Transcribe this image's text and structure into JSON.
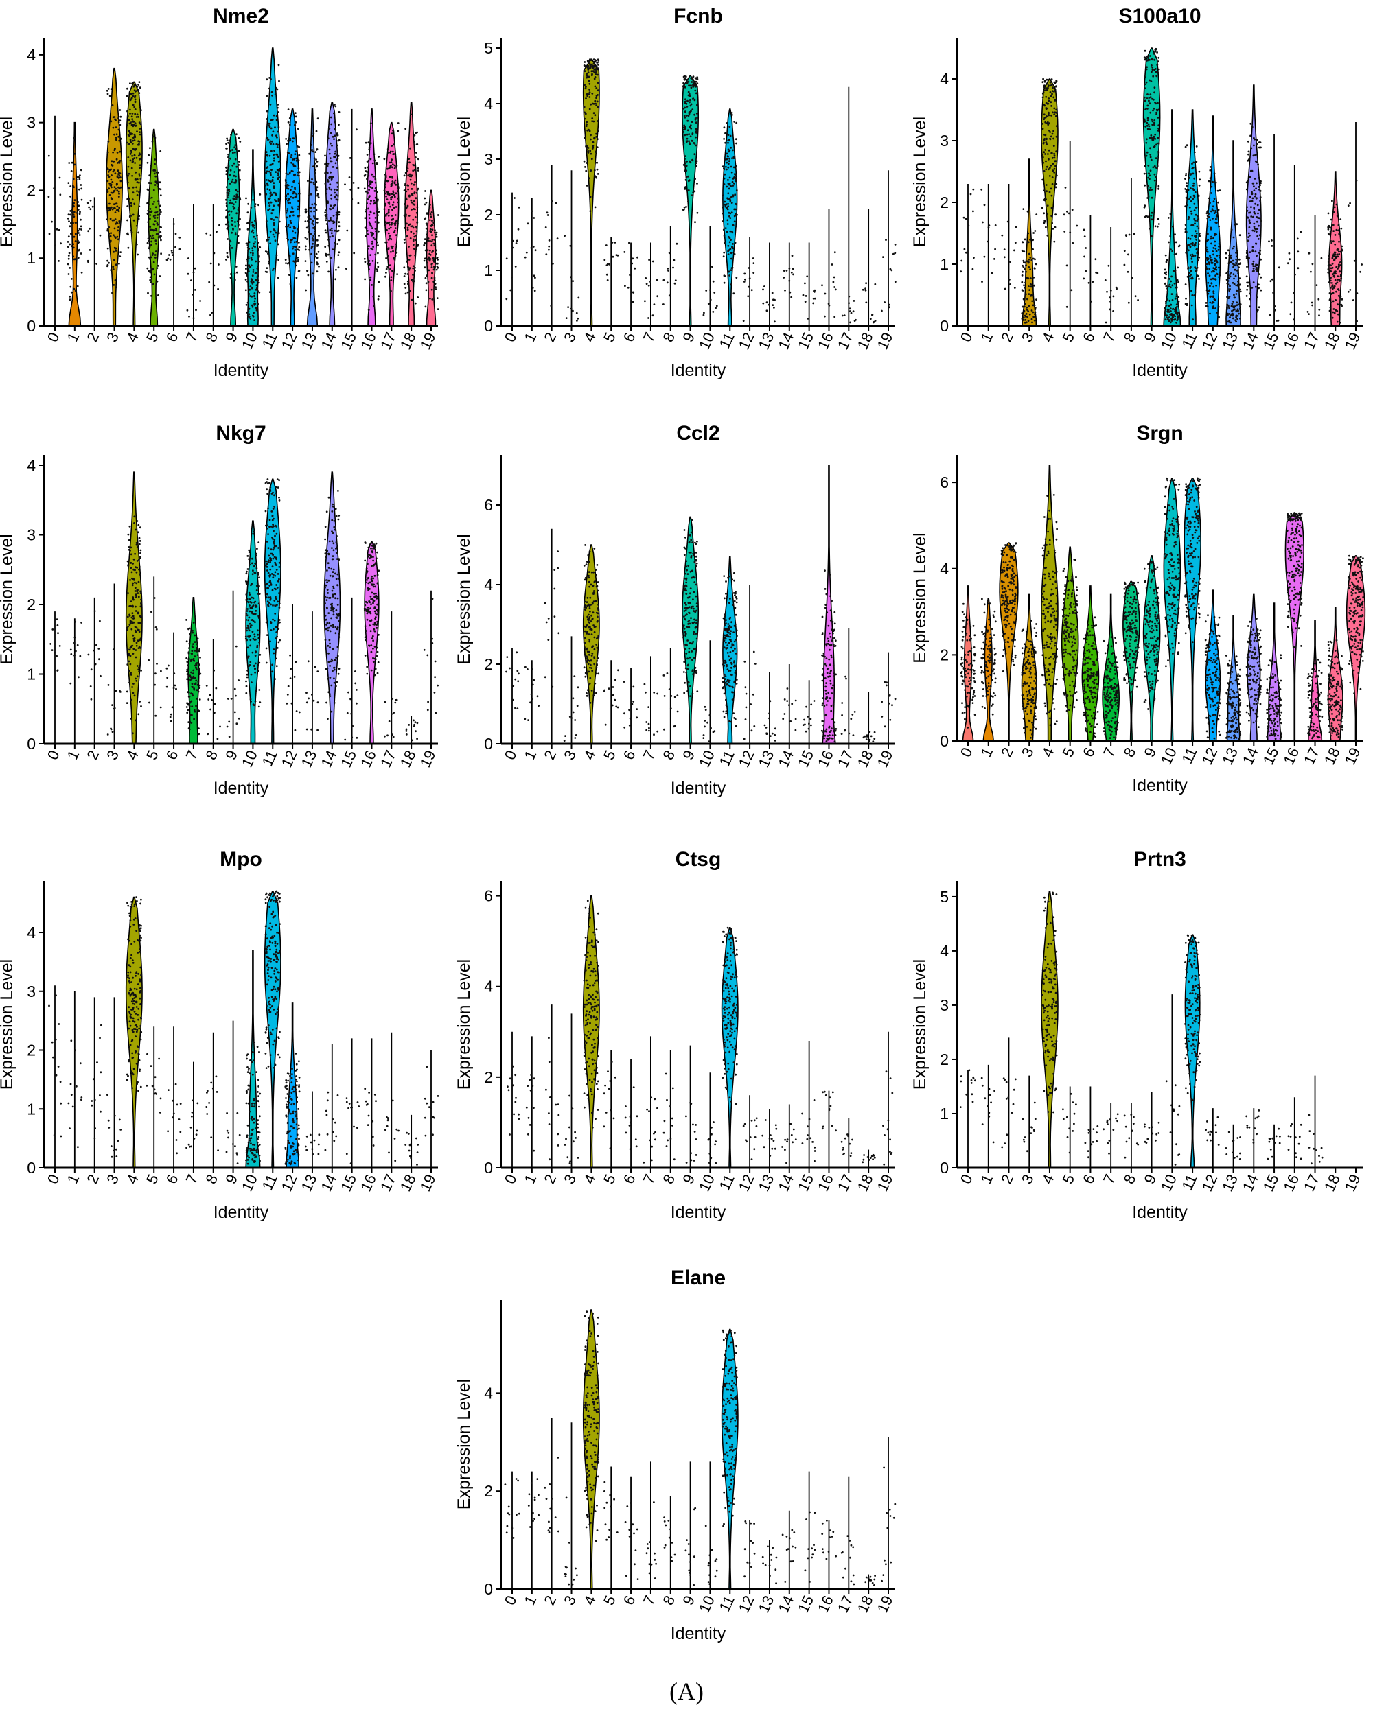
{
  "figure_label": "(A)",
  "cluster_colors": [
    "#F8766D",
    "#E58700",
    "#C99800",
    "#A3A500",
    "#6BB100",
    "#00BA38",
    "#00BF7D",
    "#00C0AF",
    "#00BCD8",
    "#00B0F6",
    "#619CFF",
    "#B983FF",
    "#E76BF3",
    "#FD61D1",
    "#FF67A4",
    "#F8766D",
    "#E58700",
    "#C99800",
    "#A3A500",
    "#6BB100"
  ],
  "cluster_color_map": {
    "0": "#F8766D",
    "1": "#E58700",
    "2": "#D89000",
    "3": "#C99800",
    "4": "#A3A500",
    "5": "#6BB100",
    "6": "#39B600",
    "7": "#00BA38",
    "8": "#00BF7D",
    "9": "#00C1A3",
    "10": "#00BFC4",
    "11": "#00B9E3",
    "12": "#00A9FF",
    "13": "#619CFF",
    "14": "#9590FF",
    "15": "#C77CFF",
    "16": "#E76BF3",
    "17": "#FF62BC",
    "18": "#FF6C91",
    "19": "#FF6C91"
  },
  "chart_data": [
    {
      "type": "violin",
      "title": "Nme2",
      "xlabel": "Identity",
      "ylabel": "Expression Level",
      "categories": [
        "0",
        "1",
        "2",
        "3",
        "4",
        "5",
        "6",
        "7",
        "8",
        "9",
        "10",
        "11",
        "12",
        "13",
        "14",
        "15",
        "16",
        "17",
        "18",
        "19"
      ],
      "yticks": [
        0,
        1,
        2,
        3,
        4
      ],
      "ylim": [
        0,
        4.1
      ],
      "max": [
        3.1,
        3.0,
        1.9,
        3.8,
        3.6,
        2.9,
        1.6,
        1.8,
        1.8,
        2.9,
        2.6,
        4.1,
        3.2,
        3.2,
        3.3,
        3.2,
        3.2,
        3.0,
        3.3,
        2.0
      ],
      "median": [
        1.6,
        1.5,
        1.4,
        2.1,
        2.6,
        1.6,
        1.1,
        0.7,
        0.9,
        1.9,
        0.9,
        2.2,
        1.9,
        1.7,
        2.1,
        1.7,
        1.6,
        1.8,
        1.7,
        1.1
      ],
      "fill": [
        0,
        0.3,
        0,
        0.9,
        0.9,
        0.6,
        0,
        0,
        0,
        0.7,
        0.6,
        0.9,
        0.8,
        0.4,
        0.7,
        0,
        0.6,
        0.8,
        0.7,
        0.5
      ]
    },
    {
      "type": "violin",
      "title": "Fcnb",
      "xlabel": "Identity",
      "ylabel": "Expression Level",
      "categories": [
        "0",
        "1",
        "2",
        "3",
        "4",
        "5",
        "6",
        "7",
        "8",
        "9",
        "10",
        "11",
        "12",
        "13",
        "14",
        "15",
        "16",
        "17",
        "18",
        "19"
      ],
      "yticks": [
        0,
        1,
        2,
        3,
        4,
        5
      ],
      "ylim": [
        0,
        5
      ],
      "max": [
        2.4,
        2.3,
        2.9,
        2.8,
        4.8,
        1.6,
        1.5,
        1.5,
        1.8,
        4.5,
        1.8,
        3.9,
        1.6,
        1.5,
        1.5,
        1.5,
        2.1,
        4.3,
        2.1,
        2.8
      ],
      "median": [
        1.5,
        1.3,
        1.4,
        0.6,
        4.2,
        1.3,
        0.9,
        0.7,
        1.0,
        3.8,
        0.4,
        2.3,
        0.8,
        0.5,
        0.7,
        0.6,
        0.7,
        0.5,
        0.2,
        1.0
      ],
      "fill": [
        0,
        0,
        0,
        0,
        0.9,
        0,
        0,
        0,
        0,
        0.9,
        0,
        0.8,
        0,
        0,
        0,
        0,
        0,
        0,
        0,
        0
      ]
    },
    {
      "type": "violin",
      "title": "S100a10",
      "xlabel": "Identity",
      "ylabel": "Expression Level",
      "categories": [
        "0",
        "1",
        "2",
        "3",
        "4",
        "5",
        "6",
        "7",
        "8",
        "9",
        "10",
        "11",
        "12",
        "13",
        "14",
        "15",
        "16",
        "17",
        "18",
        "19"
      ],
      "yticks": [
        0,
        1,
        2,
        3,
        4
      ],
      "ylim": [
        0,
        4.5
      ],
      "max": [
        2.3,
        2.3,
        2.3,
        2.7,
        4.0,
        3.0,
        1.8,
        1.6,
        2.4,
        4.5,
        3.5,
        3.5,
        3.4,
        3.0,
        3.9,
        3.1,
        2.6,
        1.8,
        2.5,
        3.3
      ],
      "median": [
        1.5,
        1.4,
        1.3,
        0.7,
        3.1,
        1.4,
        0.9,
        0.7,
        1.0,
        3.4,
        0.3,
        1.6,
        1.1,
        0.6,
        1.7,
        0.6,
        1.0,
        0.5,
        1.0,
        1.0
      ],
      "fill": [
        0,
        0,
        0,
        0.4,
        0.9,
        0,
        0,
        0,
        0,
        0.9,
        0.5,
        0.7,
        0.8,
        0.6,
        0.8,
        0,
        0,
        0,
        0.7,
        0
      ]
    },
    {
      "type": "violin",
      "title": "Nkg7",
      "xlabel": "Identity",
      "ylabel": "Expression Level",
      "categories": [
        "0",
        "1",
        "2",
        "3",
        "4",
        "5",
        "6",
        "7",
        "8",
        "9",
        "10",
        "11",
        "12",
        "13",
        "14",
        "15",
        "16",
        "17",
        "18",
        "19"
      ],
      "yticks": [
        0,
        1,
        2,
        3,
        4
      ],
      "ylim": [
        0,
        4
      ],
      "max": [
        1.9,
        1.8,
        2.1,
        2.3,
        3.9,
        2.4,
        1.6,
        2.1,
        1.5,
        2.2,
        3.2,
        3.8,
        2.0,
        1.9,
        3.9,
        2.1,
        2.9,
        1.9,
        0.4,
        2.2
      ],
      "median": [
        1.5,
        1.4,
        1.4,
        0.6,
        1.8,
        1.2,
        0.8,
        1.0,
        0.7,
        0.6,
        1.7,
        2.5,
        0.8,
        0.5,
        2.0,
        0.6,
        2.0,
        0.4,
        0.2,
        1.2
      ],
      "fill": [
        0,
        0,
        0,
        0,
        0.9,
        0,
        0,
        0.6,
        0,
        0,
        0.8,
        0.9,
        0,
        0,
        0.9,
        0,
        0.8,
        0,
        0,
        0
      ]
    },
    {
      "type": "violin",
      "title": "Ccl2",
      "xlabel": "Identity",
      "ylabel": "Expression Level",
      "categories": [
        "0",
        "1",
        "2",
        "3",
        "4",
        "5",
        "6",
        "7",
        "8",
        "9",
        "10",
        "11",
        "12",
        "13",
        "14",
        "15",
        "16",
        "17",
        "18",
        "19"
      ],
      "yticks": [
        0,
        2,
        4,
        6
      ],
      "ylim": [
        0,
        7
      ],
      "max": [
        2.4,
        2.1,
        5.4,
        2.7,
        5.0,
        2.1,
        1.9,
        2.2,
        2.4,
        5.7,
        2.6,
        4.7,
        4.0,
        1.8,
        2.0,
        1.6,
        7.0,
        2.9,
        1.3,
        2.3
      ],
      "median": [
        1.6,
        1.4,
        3.0,
        0.7,
        3.0,
        1.3,
        0.9,
        0.7,
        1.0,
        3.3,
        0.5,
        2.3,
        0.8,
        0.4,
        0.7,
        0.6,
        1.5,
        0.5,
        0.2,
        1.1
      ],
      "fill": [
        0,
        0,
        0,
        0,
        0.9,
        0,
        0,
        0,
        0,
        0.9,
        0,
        0.8,
        0,
        0,
        0,
        0,
        0.6,
        0,
        0,
        0
      ]
    },
    {
      "type": "violin",
      "title": "Srgn",
      "xlabel": "Identity",
      "ylabel": "Expression Level",
      "categories": [
        "0",
        "1",
        "2",
        "3",
        "4",
        "5",
        "6",
        "7",
        "8",
        "9",
        "10",
        "11",
        "12",
        "13",
        "14",
        "15",
        "16",
        "17",
        "18",
        "19"
      ],
      "yticks": [
        0,
        2,
        4,
        6
      ],
      "ylim": [
        0,
        6.4
      ],
      "max": [
        3.6,
        3.3,
        4.6,
        3.4,
        6.4,
        4.5,
        3.6,
        3.4,
        3.7,
        4.3,
        6.1,
        6.1,
        3.5,
        2.9,
        3.4,
        3.2,
        5.3,
        2.8,
        3.1,
        4.3
      ],
      "median": [
        1.8,
        1.9,
        3.5,
        1.3,
        3.0,
        2.3,
        1.5,
        1.0,
        2.7,
        2.5,
        4.0,
        4.6,
        1.4,
        0.8,
        1.6,
        0.8,
        4.4,
        0.8,
        1.0,
        3.0
      ],
      "fill": [
        0.4,
        0.4,
        1,
        0.8,
        0.9,
        0.9,
        0.9,
        0.9,
        0.9,
        0.9,
        0.9,
        0.9,
        0.8,
        0.6,
        0.7,
        0.6,
        1,
        0.4,
        0.8,
        1
      ]
    },
    {
      "type": "violin",
      "title": "Mpo",
      "xlabel": "Identity",
      "ylabel": "Expression Level",
      "categories": [
        "0",
        "1",
        "2",
        "3",
        "4",
        "5",
        "6",
        "7",
        "8",
        "9",
        "10",
        "11",
        "12",
        "13",
        "14",
        "15",
        "16",
        "17",
        "18",
        "19"
      ],
      "yticks": [
        0,
        1,
        2,
        3,
        4
      ],
      "ylim": [
        0,
        4.7
      ],
      "max": [
        3.1,
        3.0,
        2.9,
        2.9,
        4.6,
        2.4,
        2.4,
        1.8,
        2.3,
        2.5,
        3.7,
        4.7,
        2.8,
        1.3,
        2.1,
        2.2,
        2.2,
        2.3,
        0.9,
        2.0
      ],
      "median": [
        1.6,
        1.4,
        1.4,
        0.6,
        3.0,
        1.4,
        0.9,
        0.7,
        1.1,
        0.6,
        0.8,
        3.5,
        0.8,
        0.4,
        0.7,
        0.6,
        1.1,
        0.5,
        0.3,
        1.0
      ],
      "fill": [
        0,
        0,
        0,
        0,
        0.9,
        0,
        0,
        0,
        0,
        0,
        0.4,
        0.9,
        0.5,
        0,
        0,
        0,
        0,
        0,
        0,
        0
      ]
    },
    {
      "type": "violin",
      "title": "Ctsg",
      "xlabel": "Identity",
      "ylabel": "Expression Level",
      "categories": [
        "0",
        "1",
        "2",
        "3",
        "4",
        "5",
        "6",
        "7",
        "8",
        "9",
        "10",
        "11",
        "12",
        "13",
        "14",
        "15",
        "16",
        "17",
        "18",
        "19"
      ],
      "yticks": [
        0,
        2,
        4,
        6
      ],
      "ylim": [
        0,
        6.1
      ],
      "max": [
        3.0,
        2.9,
        3.6,
        3.4,
        6.0,
        2.6,
        2.4,
        2.9,
        2.6,
        2.7,
        2.1,
        5.3,
        1.6,
        1.3,
        1.4,
        2.8,
        1.7,
        1.1,
        0.4,
        3.0
      ],
      "median": [
        1.6,
        1.4,
        1.5,
        0.6,
        3.5,
        1.4,
        0.9,
        0.7,
        1.0,
        0.6,
        0.4,
        3.5,
        0.8,
        0.6,
        0.6,
        0.7,
        1.1,
        0.4,
        0.2,
        1.0
      ],
      "fill": [
        0,
        0,
        0,
        0,
        0.9,
        0,
        0,
        0,
        0,
        0,
        0,
        0.9,
        0,
        0,
        0,
        0,
        0,
        0,
        0,
        0
      ]
    },
    {
      "type": "violin",
      "title": "Prtn3",
      "xlabel": "Identity",
      "ylabel": "Expression Level",
      "categories": [
        "0",
        "1",
        "2",
        "3",
        "4",
        "5",
        "6",
        "7",
        "8",
        "9",
        "10",
        "11",
        "12",
        "13",
        "14",
        "15",
        "16",
        "17",
        "18",
        "19"
      ],
      "yticks": [
        0,
        1,
        2,
        3,
        4,
        5
      ],
      "ylim": [
        0,
        5.1
      ],
      "max": [
        1.8,
        1.9,
        2.4,
        1.7,
        5.1,
        1.5,
        1.5,
        1.2,
        1.2,
        1.4,
        3.2,
        4.3,
        1.1,
        0.8,
        1.1,
        0.8,
        1.3,
        1.7,
        0,
        0
      ],
      "median": [
        1.5,
        1.3,
        1.0,
        0.6,
        3.0,
        0.8,
        0.7,
        0.7,
        0.6,
        0.6,
        0.5,
        3.0,
        0.6,
        0.4,
        0.8,
        0.4,
        0.5,
        0.3,
        0,
        0
      ],
      "fill": [
        0,
        0,
        0,
        0,
        0.9,
        0,
        0,
        0,
        0,
        0,
        0,
        0.8,
        0,
        0,
        0,
        0,
        0,
        0,
        0,
        0
      ]
    },
    {
      "type": "violin",
      "title": "Elane",
      "xlabel": "Identity",
      "ylabel": "Expression Level",
      "categories": [
        "0",
        "1",
        "2",
        "3",
        "4",
        "5",
        "6",
        "7",
        "8",
        "9",
        "10",
        "11",
        "12",
        "13",
        "14",
        "15",
        "16",
        "17",
        "18",
        "19"
      ],
      "yticks": [
        0,
        2,
        4
      ],
      "ylim": [
        0,
        5.7
      ],
      "max": [
        2.4,
        2.4,
        3.5,
        3.4,
        5.7,
        2.5,
        2.3,
        2.6,
        1.9,
        2.6,
        2.6,
        5.3,
        1.4,
        1.0,
        1.6,
        2.4,
        1.4,
        2.3,
        0.3,
        3.1
      ],
      "median": [
        1.5,
        1.5,
        1.5,
        0.7,
        3.5,
        1.3,
        0.9,
        0.7,
        1.0,
        0.6,
        0.5,
        3.5,
        0.8,
        0.5,
        0.8,
        0.8,
        1.0,
        0.5,
        0.2,
        1.3
      ],
      "fill": [
        0,
        0,
        0,
        0,
        0.9,
        0,
        0,
        0,
        0,
        0,
        0,
        0.9,
        0,
        0,
        0,
        0,
        0,
        0,
        0,
        0
      ]
    }
  ]
}
